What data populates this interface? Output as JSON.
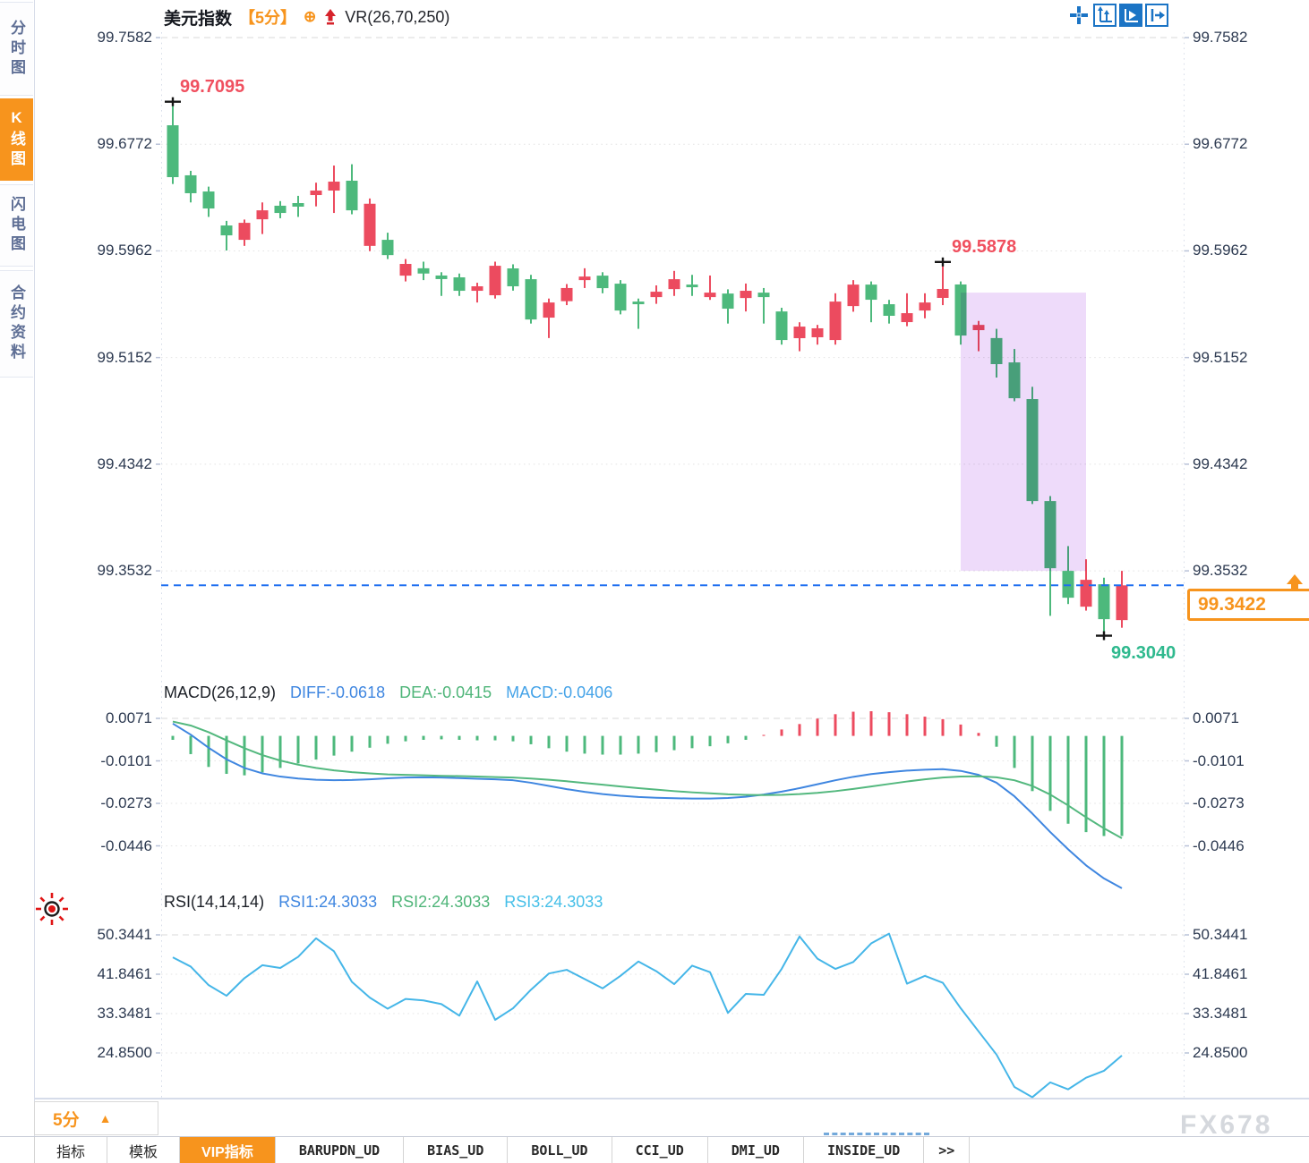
{
  "sidebar": {
    "items": [
      {
        "key": "time-chart",
        "label": "分时图",
        "active": false
      },
      {
        "key": "kline-chart",
        "label": "K线图",
        "active": true
      },
      {
        "key": "flash-chart",
        "label": "闪电图",
        "active": false
      },
      {
        "key": "contract-info",
        "label": "合约资料",
        "active": false
      }
    ]
  },
  "header": {
    "symbol": "美元指数",
    "period": "【5分】",
    "plus_icon": "⊕",
    "overlay_indicator": "VR(26,70,250)"
  },
  "toolbar": {
    "icons": [
      "pan-crosshair",
      "axis-scale",
      "axis-play",
      "collapse-right"
    ]
  },
  "macd_pane": {
    "title": "MACD(26,12,9)",
    "diff_label": "DIFF:-0.0618",
    "dea_label": "DEA:-0.0415",
    "macd_label": "MACD:-0.0406"
  },
  "rsi_pane": {
    "title": "RSI(14,14,14)",
    "rsi1_label": "RSI1:24.3033",
    "rsi2_label": "RSI2:24.3033",
    "rsi3_label": "RSI3:24.3033"
  },
  "footer": {
    "period_selector": "5分",
    "tabs": [
      {
        "key": "indicator",
        "label": "指标",
        "active": false,
        "mono": false
      },
      {
        "key": "template",
        "label": "模板",
        "active": false,
        "mono": false
      },
      {
        "key": "vip-indicator",
        "label": "VIP指标",
        "active": true,
        "mono": false
      },
      {
        "key": "barupdn",
        "label": "BARUPDN_UD",
        "active": false,
        "mono": true
      },
      {
        "key": "bias",
        "label": "BIAS_UD",
        "active": false,
        "mono": true
      },
      {
        "key": "boll",
        "label": "BOLL_UD",
        "active": false,
        "mono": true
      },
      {
        "key": "cci",
        "label": "CCI_UD",
        "active": false,
        "mono": true
      },
      {
        "key": "dmi",
        "label": "DMI_UD",
        "active": false,
        "mono": true
      },
      {
        "key": "inside",
        "label": "INSIDE_UD",
        "active": false,
        "mono": true
      },
      {
        "key": "more",
        "label": ">>",
        "active": false,
        "mono": true
      }
    ]
  },
  "watermark": "FX678",
  "colors": {
    "up": "#ec4b5f",
    "down": "#4db97c",
    "zone": "#eedbfa",
    "diff_line": "#3f86e0",
    "dea_line": "#53b87e",
    "rsi_line": "#45b6e8",
    "dashed_line": "#1e6ff0",
    "accent_orange": "#f7941d",
    "annotation_red": "#f0505f",
    "annotation_green": "#2fb98e",
    "axis_text": "#2c3950"
  },
  "chart_data": [
    {
      "type": "candlestick",
      "title": "美元指数 5分 K线图",
      "y_ticks": [
        99.7582,
        99.6772,
        99.5962,
        99.5152,
        99.4342,
        99.3532
      ],
      "y_tick_labels": [
        "99.7582",
        "99.6772",
        "99.5962",
        "99.5152",
        "99.4342",
        "99.3532"
      ],
      "ohlc": [
        [
          99.6916,
          99.7095,
          99.647,
          99.6522
        ],
        [
          99.6536,
          99.657,
          99.633,
          99.64
        ],
        [
          99.6413,
          99.645,
          99.622,
          99.6284
        ],
        [
          99.6155,
          99.619,
          99.5965,
          99.608
        ],
        [
          99.6046,
          99.62,
          99.6,
          99.6175
        ],
        [
          99.6202,
          99.633,
          99.609,
          99.627
        ],
        [
          99.6305,
          99.634,
          99.621,
          99.625
        ],
        [
          99.6325,
          99.638,
          99.622,
          99.6298
        ],
        [
          99.6386,
          99.648,
          99.63,
          99.642
        ],
        [
          99.642,
          99.661,
          99.625,
          99.6488
        ],
        [
          99.6495,
          99.662,
          99.624,
          99.627
        ],
        [
          99.6,
          99.636,
          99.596,
          99.632
        ],
        [
          99.6046,
          99.61,
          99.59,
          99.593
        ],
        [
          99.5774,
          99.59,
          99.573,
          99.5863
        ],
        [
          99.583,
          99.588,
          99.574,
          99.579
        ],
        [
          99.5775,
          99.58,
          99.562,
          99.5748
        ],
        [
          99.5761,
          99.579,
          99.562,
          99.5659
        ],
        [
          99.5659,
          99.572,
          99.557,
          99.5693
        ],
        [
          99.5625,
          99.588,
          99.56,
          99.5849
        ],
        [
          99.5829,
          99.586,
          99.566,
          99.5693
        ],
        [
          99.5747,
          99.578,
          99.541,
          99.5441
        ],
        [
          99.5455,
          99.56,
          99.53,
          99.557
        ],
        [
          99.558,
          99.571,
          99.555,
          99.568
        ],
        [
          99.574,
          99.583,
          99.568,
          99.5767
        ],
        [
          99.5774,
          99.58,
          99.564,
          99.5679
        ],
        [
          99.5713,
          99.574,
          99.548,
          99.5509
        ],
        [
          99.5577,
          99.56,
          99.537,
          99.5557
        ],
        [
          99.5611,
          99.57,
          99.556,
          99.5652
        ],
        [
          99.5672,
          99.581,
          99.562,
          99.5747
        ],
        [
          99.5706,
          99.578,
          99.562,
          99.5686
        ],
        [
          99.5611,
          99.5775,
          99.559,
          99.5645
        ],
        [
          99.5638,
          99.567,
          99.541,
          99.5523
        ],
        [
          99.5604,
          99.5714,
          99.5502,
          99.5659
        ],
        [
          99.5645,
          99.568,
          99.541,
          99.5611
        ],
        [
          99.5502,
          99.553,
          99.525,
          99.5285
        ],
        [
          99.5299,
          99.542,
          99.52,
          99.5387
        ],
        [
          99.5306,
          99.54,
          99.525,
          99.5374
        ],
        [
          99.5285,
          99.564,
          99.525,
          99.5577
        ],
        [
          99.5543,
          99.574,
          99.55,
          99.5706
        ],
        [
          99.5706,
          99.573,
          99.542,
          99.5591
        ],
        [
          99.5557,
          99.559,
          99.541,
          99.5469
        ],
        [
          99.5421,
          99.564,
          99.539,
          99.5489
        ],
        [
          99.5509,
          99.564,
          99.545,
          99.557
        ],
        [
          99.5605,
          99.5878,
          99.555,
          99.5673
        ],
        [
          99.5707,
          99.573,
          99.525,
          99.5319
        ],
        [
          99.536,
          99.543,
          99.52,
          99.54
        ],
        [
          99.53,
          99.537,
          99.5,
          99.5102
        ],
        [
          99.5115,
          99.5217,
          99.482,
          99.4843
        ],
        [
          99.4837,
          99.493,
          99.404,
          99.4062
        ],
        [
          99.4062,
          99.41,
          99.319,
          99.3552
        ],
        [
          99.3532,
          99.372,
          99.328,
          99.3328
        ],
        [
          99.326,
          99.362,
          99.323,
          99.3464
        ],
        [
          99.343,
          99.348,
          99.304,
          99.3165
        ],
        [
          99.3158,
          99.3532,
          99.31,
          99.3422
        ]
      ],
      "annotations": {
        "high": {
          "index": 0,
          "price": 99.7095,
          "label": "99.7095"
        },
        "swing_high": {
          "index": 43,
          "price": 99.5878,
          "label": "99.5878"
        },
        "low": {
          "index": 52,
          "price": 99.304,
          "label": "99.3040"
        },
        "last_price": {
          "price": 99.3422,
          "label": "99.3422"
        }
      },
      "highlight_zone": {
        "from_index": 44,
        "to_index": 51,
        "price_top": 99.5645,
        "price_bottom": 99.3532
      }
    },
    {
      "type": "bar",
      "name": "MACD(26,12,9)",
      "y_ticks": [
        0.0071,
        -0.0101,
        -0.0273,
        -0.0446
      ],
      "y_tick_labels": [
        "0.0071",
        "-0.0101",
        "-0.0273",
        "-0.0446"
      ],
      "diff_value": -0.0618,
      "dea_value": -0.0415,
      "macd_value": -0.0406,
      "diff": [
        0.005,
        0.0005,
        -0.0048,
        -0.0095,
        -0.013,
        -0.0152,
        -0.0165,
        -0.0173,
        -0.0178,
        -0.018,
        -0.0179,
        -0.0176,
        -0.0172,
        -0.0169,
        -0.0168,
        -0.0169,
        -0.0171,
        -0.0174,
        -0.0176,
        -0.018,
        -0.019,
        -0.0203,
        -0.0216,
        -0.0227,
        -0.0236,
        -0.0243,
        -0.0248,
        -0.0251,
        -0.0253,
        -0.0254,
        -0.0254,
        -0.0252,
        -0.0247,
        -0.0238,
        -0.0226,
        -0.0212,
        -0.0196,
        -0.018,
        -0.0166,
        -0.0155,
        -0.0147,
        -0.0141,
        -0.0137,
        -0.0135,
        -0.0142,
        -0.0158,
        -0.019,
        -0.0245,
        -0.0315,
        -0.039,
        -0.046,
        -0.0525,
        -0.0578,
        -0.0618
      ],
      "dea": [
        0.0058,
        0.0042,
        0.0015,
        -0.0018,
        -0.005,
        -0.0078,
        -0.01,
        -0.0117,
        -0.013,
        -0.014,
        -0.0147,
        -0.0152,
        -0.0156,
        -0.0158,
        -0.016,
        -0.0162,
        -0.0163,
        -0.0165,
        -0.0167,
        -0.0169,
        -0.0173,
        -0.0178,
        -0.0184,
        -0.0191,
        -0.0198,
        -0.0205,
        -0.0212,
        -0.0218,
        -0.0224,
        -0.0229,
        -0.0233,
        -0.0237,
        -0.0239,
        -0.024,
        -0.0239,
        -0.0236,
        -0.0231,
        -0.0224,
        -0.0215,
        -0.0205,
        -0.0195,
        -0.0185,
        -0.0176,
        -0.0169,
        -0.0165,
        -0.0164,
        -0.0168,
        -0.018,
        -0.0203,
        -0.0238,
        -0.0282,
        -0.033,
        -0.0375,
        -0.0415
      ],
      "hist": [
        -0.0016,
        -0.0074,
        -0.0126,
        -0.0154,
        -0.016,
        -0.0148,
        -0.013,
        -0.0112,
        -0.0096,
        -0.008,
        -0.0064,
        -0.0048,
        -0.0032,
        -0.0022,
        -0.0016,
        -0.0014,
        -0.0016,
        -0.0018,
        -0.0018,
        -0.0022,
        -0.0034,
        -0.005,
        -0.0064,
        -0.0072,
        -0.0076,
        -0.0076,
        -0.0072,
        -0.0066,
        -0.0058,
        -0.005,
        -0.0042,
        -0.003,
        -0.0016,
        0.0004,
        0.0026,
        0.0048,
        0.007,
        0.0088,
        0.0098,
        0.01,
        0.0096,
        0.0088,
        0.0078,
        0.0068,
        0.0046,
        0.0012,
        -0.0044,
        -0.013,
        -0.0224,
        -0.0304,
        -0.0356,
        -0.039,
        -0.0406,
        -0.0406
      ]
    },
    {
      "type": "line",
      "name": "RSI(14,14,14)",
      "y_ticks": [
        50.3441,
        41.8461,
        33.3481,
        24.85
      ],
      "y_tick_labels": [
        "50.3441",
        "41.8461",
        "33.3481",
        "24.8500"
      ],
      "rsi1": 24.3033,
      "rsi2": 24.3033,
      "rsi3": 24.3033,
      "rsi": [
        45.5,
        43.5,
        39.5,
        37.2,
        41.0,
        43.8,
        43.2,
        45.6,
        49.6,
        46.8,
        40.2,
        36.8,
        34.4,
        36.5,
        36.2,
        35.4,
        32.9,
        40.3,
        32.0,
        34.5,
        38.5,
        42.0,
        42.8,
        40.8,
        38.8,
        41.5,
        44.6,
        42.5,
        39.7,
        43.7,
        42.3,
        33.5,
        37.6,
        37.4,
        43.0,
        50.0,
        45.2,
        43.0,
        44.5,
        48.5,
        50.6,
        39.8,
        41.5,
        40.0,
        34.5,
        29.5,
        24.5,
        17.5,
        15.3,
        18.5,
        17.0,
        19.5,
        21.0,
        24.3
      ]
    }
  ]
}
